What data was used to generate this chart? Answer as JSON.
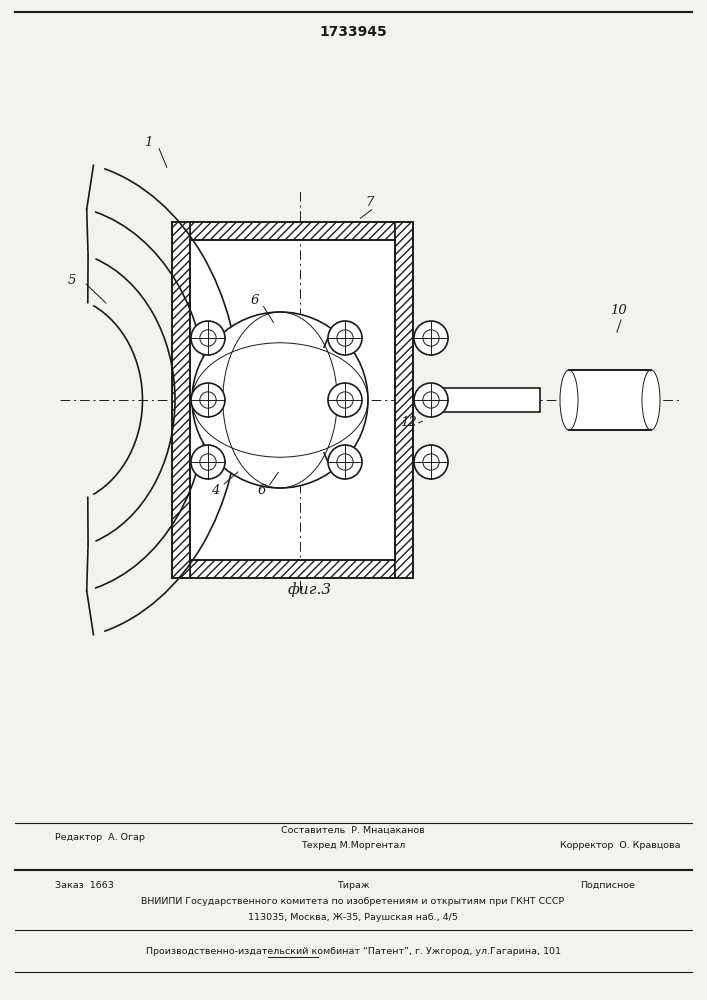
{
  "title": "1733945",
  "fig_label": "фиг.3",
  "bg_color": "#f2f2ee",
  "lc": "#1a1a1a",
  "page_width": 7.07,
  "page_height": 10.0,
  "footer": {
    "editor": "Редактор  А. Огар",
    "composer": "Составитель  Р. Мнацаканов",
    "techred": "Техред М.Моргентал",
    "corrector": "Корректор  О. Кравцова",
    "order": "Заказ  1663",
    "tirazh": "Тираж",
    "podpisnoe": "Подписное",
    "vniipи": "ВНИИПИ Государственного комитета по изобретениям и открытиям при ГКНТ СССР",
    "address": "113035, Москва, Ж-35, Раушская наб., 4/5",
    "patent": "Производственно-издательский комбинат “Патент”, г. Ужгород, ул.Гагарина, 101"
  }
}
